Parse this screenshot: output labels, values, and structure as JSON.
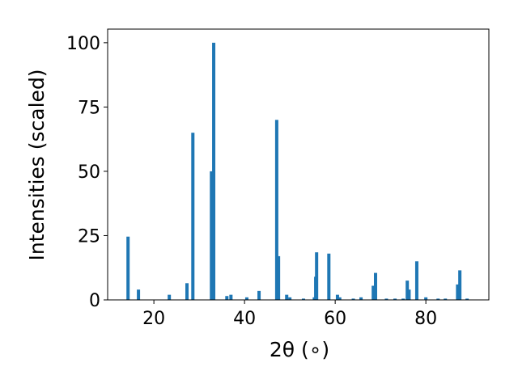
{
  "chart_data": {
    "type": "bar",
    "xlabel": "2θ (∘)",
    "ylabel": "Intensities (scaled)",
    "color": "#1f77b4",
    "x": [
      14.3,
      16.6,
      23.4,
      27.3,
      28.6,
      32.7,
      33.2,
      36.1,
      37.0,
      40.5,
      43.2,
      47.1,
      47.5,
      49.3,
      50.0,
      53.0,
      55.4,
      55.7,
      55.9,
      58.6,
      60.5,
      61.0,
      64.0,
      65.7,
      68.4,
      68.9,
      71.3,
      73.2,
      75.0,
      75.9,
      76.3,
      78.0,
      80.0,
      82.7,
      84.3,
      87.0,
      87.5,
      89.1
    ],
    "values": [
      24.6,
      4,
      2,
      6.5,
      65,
      50,
      100,
      1.5,
      2,
      1,
      3.5,
      70,
      17,
      2,
      1,
      0.5,
      1,
      9,
      18.5,
      18,
      2,
      1,
      0.5,
      1,
      5.5,
      10.5,
      0.5,
      0.5,
      0.5,
      7.5,
      4,
      15,
      1,
      0.5,
      0.5,
      6,
      11.5,
      0.5
    ],
    "xlim": [
      9.8,
      93.9
    ],
    "ylim": [
      0,
      105.3
    ],
    "xticks": [
      20,
      40,
      60,
      80
    ],
    "yticks": [
      0,
      25,
      50,
      75,
      100
    ]
  }
}
